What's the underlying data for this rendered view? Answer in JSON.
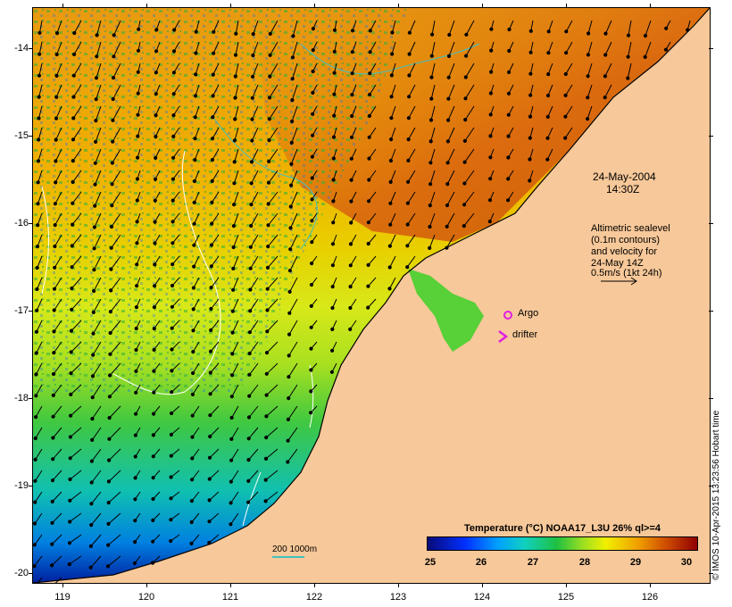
{
  "map": {
    "date": "24-May-2004",
    "time": "14:30Z",
    "legend_note": [
      "Altimetric sealevel",
      "(0.1m contours)",
      "and velocity for",
      "24-May 14Z",
      "0.5m/s (1kt 24h)"
    ],
    "argo_label": "Argo",
    "drifter_label": "drifter",
    "colorbar_title": "Temperature (°C) NOAA17_L3U 26% ql>=4",
    "colorbar_ticks": [
      "25",
      "26",
      "27",
      "28",
      "29",
      "30"
    ],
    "colorbar_colors": [
      "#0a0a7a",
      "#0030ff",
      "#00a0ff",
      "#10d0c0",
      "#20c040",
      "#a0e020",
      "#f0f000",
      "#f0a000",
      "#d05000",
      "#900000"
    ],
    "scale_label": "200  1000m",
    "credit": "© IMOS 10-Apr-2015 13:23:56 Hobart time",
    "lat_labels": [
      "-14",
      "-15",
      "-16",
      "-17",
      "-18",
      "-19",
      "-20"
    ],
    "lon_labels": [
      "119",
      "120",
      "121",
      "122",
      "123",
      "124",
      "125",
      "126"
    ],
    "land_color": "#f7c899",
    "argo_color": "#e020e0",
    "contour_color": "#40c0c0"
  }
}
